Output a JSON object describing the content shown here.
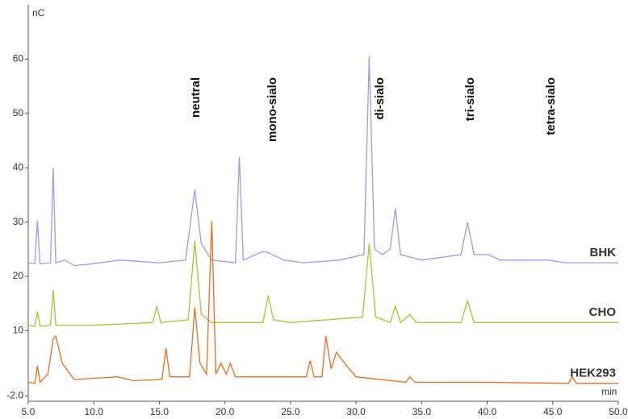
{
  "chart_data": {
    "type": "line",
    "y_label": "nC",
    "x_label": "min",
    "annotations": [
      "neutral",
      "mono-sialo",
      "di-sialo",
      "tri-sialo",
      "tetra-sialo"
    ],
    "xlim": [
      5,
      50
    ],
    "xticks": [
      {
        "value": 5,
        "label": "5.0"
      },
      {
        "value": 10,
        "label": "10.0"
      },
      {
        "value": 15,
        "label": "15.0"
      },
      {
        "value": 20,
        "label": "20.0"
      },
      {
        "value": 25,
        "label": "25.0"
      },
      {
        "value": 30,
        "label": "30.0"
      },
      {
        "value": 35,
        "label": "35.0"
      },
      {
        "value": 40,
        "label": "40.0"
      },
      {
        "value": 45,
        "label": "45.0"
      },
      {
        "value": 50,
        "label": "50.0"
      }
    ],
    "ylim": [
      -3,
      70
    ],
    "yticks": [
      {
        "value": -2,
        "label": "-2.0"
      },
      10,
      20,
      30,
      40,
      50,
      60
    ],
    "series": [
      {
        "name": "BHK",
        "color": "#9b9bf0",
        "x": [
          5.0,
          5.5,
          5.7,
          5.9,
          6.7,
          6.9,
          7.1,
          7.8,
          8.5,
          9.5,
          12.0,
          15.0,
          17.0,
          17.7,
          18.2,
          19.0,
          20.8,
          21.1,
          21.4,
          22.8,
          23.2,
          24.5,
          26.0,
          28.7,
          30.6,
          31.0,
          31.4,
          32.0,
          32.6,
          33.0,
          33.4,
          35.0,
          38.0,
          38.5,
          39.0,
          40.1,
          41.0,
          44.6,
          46.0,
          50.0
        ],
        "values": [
          22.5,
          22.3,
          30.3,
          22.3,
          22.5,
          40,
          22.5,
          23,
          22,
          22.2,
          23,
          22.5,
          23,
          36,
          26,
          23,
          22.5,
          42,
          23,
          24.5,
          24.5,
          23,
          22.5,
          23,
          24,
          60.5,
          25,
          24,
          25,
          32.5,
          24,
          23,
          24,
          30,
          24,
          24,
          23,
          23,
          22.5,
          22.5
        ]
      },
      {
        "name": "CHO",
        "color": "#9ccc2e",
        "x": [
          5.0,
          5.5,
          5.7,
          5.9,
          6.7,
          6.9,
          7.1,
          10.0,
          14.5,
          14.8,
          15.1,
          17.2,
          17.7,
          18.2,
          19.0,
          22.9,
          23.3,
          23.7,
          25.0,
          30.5,
          31.0,
          31.5,
          32.6,
          33.0,
          33.4,
          34.1,
          34.6,
          38.0,
          38.5,
          39.0,
          41.0,
          45.0,
          50.0
        ],
        "values": [
          11,
          10.8,
          13.5,
          10.8,
          11,
          17.5,
          11,
          11,
          11.5,
          14.5,
          11.5,
          12,
          26.5,
          13,
          11.5,
          11.5,
          16.5,
          12,
          11.5,
          12.5,
          26,
          12.5,
          11.5,
          14.5,
          11.5,
          13,
          11.5,
          11.5,
          15.5,
          11.5,
          11.5,
          11.5,
          11.5
        ]
      },
      {
        "name": "HEK293",
        "color": "#ee6c1e",
        "x": [
          5.0,
          5.5,
          5.7,
          5.9,
          6.5,
          6.9,
          7.1,
          7.6,
          8.5,
          11.8,
          13.0,
          15.2,
          15.5,
          15.8,
          17.3,
          17.7,
          18.1,
          18.6,
          19.0,
          19.3,
          19.7,
          20.1,
          20.4,
          20.8,
          23.0,
          26.2,
          26.5,
          26.8,
          27.4,
          27.7,
          28.1,
          28.5,
          29.3,
          30.0,
          33.8,
          34.1,
          34.5,
          40.0,
          46.2,
          46.5,
          46.8,
          50.0
        ],
        "values": [
          0.5,
          0.3,
          3.5,
          0.5,
          2,
          8.5,
          9,
          4,
          1,
          1.5,
          0.8,
          1,
          6.8,
          1.5,
          1.5,
          14.3,
          4,
          2,
          30.2,
          2,
          4,
          2,
          4,
          1.5,
          1.5,
          1.5,
          4.5,
          1.5,
          1.5,
          9,
          3,
          6,
          3.5,
          1.5,
          0.5,
          1.5,
          0.5,
          0.5,
          0.3,
          1.5,
          0.3,
          0.3
        ]
      }
    ]
  }
}
